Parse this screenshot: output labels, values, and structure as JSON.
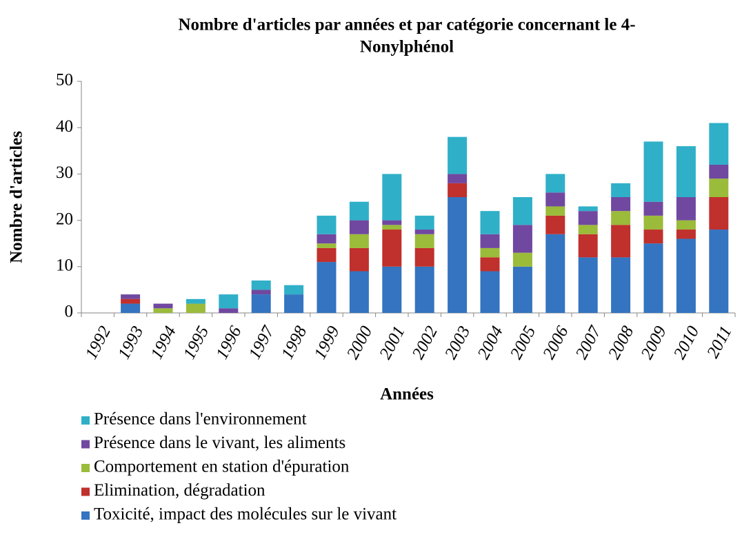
{
  "chart_data": {
    "type": "stacked_bar",
    "title": "Nombre d'articles par années et par catégorie concernant le 4-Nonylphénol",
    "title_lines": [
      "Nombre d'articles par années et par catégorie concernant le 4-",
      "Nonylphénol"
    ],
    "x_label": "Années",
    "y_label": "Nombre d'articles",
    "categories": [
      "1992",
      "1993",
      "1994",
      "1995",
      "1996",
      "1997",
      "1998",
      "1999",
      "2000",
      "2001",
      "2002",
      "2003",
      "2004",
      "2005",
      "2006",
      "2007",
      "2008",
      "2009",
      "2010",
      "2011"
    ],
    "series": [
      {
        "name": "Toxicité, impact des molécules sur le vivant",
        "color": "#3474c0",
        "values": [
          0,
          2,
          0,
          0,
          0,
          4,
          4,
          11,
          9,
          10,
          10,
          25,
          9,
          10,
          17,
          12,
          12,
          15,
          16,
          18
        ]
      },
      {
        "name": "Elimination, dégradation",
        "color": "#c0302c",
        "values": [
          0,
          1,
          0,
          0,
          0,
          0,
          0,
          3,
          5,
          8,
          4,
          3,
          3,
          0,
          4,
          5,
          7,
          3,
          2,
          7
        ]
      },
      {
        "name": "Comportement en station d'épuration",
        "color": "#9bbb3b",
        "values": [
          0,
          0,
          1,
          2,
          0,
          0,
          0,
          1,
          3,
          1,
          3,
          0,
          2,
          3,
          2,
          2,
          3,
          3,
          2,
          4
        ]
      },
      {
        "name": "Présence dans le vivant, les aliments",
        "color": "#7048a0",
        "values": [
          0,
          1,
          1,
          0,
          1,
          1,
          0,
          2,
          3,
          1,
          1,
          2,
          3,
          6,
          3,
          3,
          3,
          3,
          5,
          3
        ]
      },
      {
        "name": "Présence dans l'environnement",
        "color": "#2fb0c8",
        "values": [
          0,
          0,
          0,
          1,
          3,
          2,
          2,
          4,
          4,
          10,
          3,
          8,
          5,
          6,
          4,
          1,
          3,
          13,
          11,
          9
        ]
      }
    ],
    "ylim": [
      0,
      50
    ],
    "yticks": [
      0,
      10,
      20,
      30,
      40,
      50
    ],
    "grid": false,
    "legend": "bottom"
  }
}
